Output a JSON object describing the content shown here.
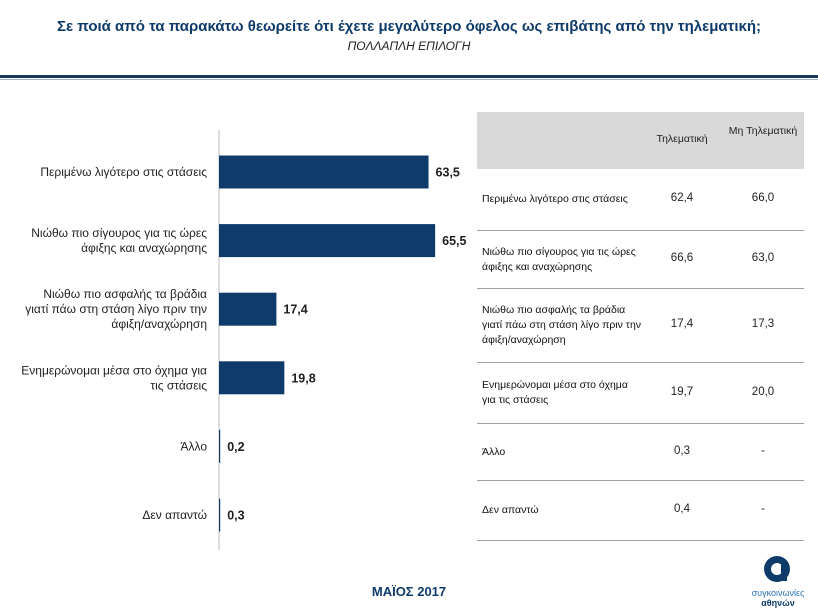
{
  "header": {
    "title": "Σε ποιά από τα παρακάτω θεωρείτε ότι έχετε μεγαλύτερο όφελος ως επιβάτης από την τηλεματική;",
    "subtitle": "ΠΟΛΛΑΠΛΗ ΕΠΙΛΟΓΗ"
  },
  "chart_data": {
    "type": "bar",
    "orientation": "horizontal",
    "title": "Σε ποιά από τα παρακάτω θεωρείτε ότι έχετε μεγαλύτερο όφελος ως επιβάτης από την τηλεματική;",
    "categories": [
      [
        "Περιμένω λιγότερο στις στάσεις"
      ],
      [
        "Νιώθω πιο σίγουρος για τις ώρες",
        "άφιξης και αναχώρησης"
      ],
      [
        "Νιώθω πιο ασφαλής τα βράδια",
        "γιατί πάω στη στάση λίγο πριν την",
        "άφιξη/αναχώρηση"
      ],
      [
        "Ενημερώνομαι μέσα στο όχημα για",
        "τις στάσεις"
      ],
      [
        "Άλλο"
      ],
      [
        "Δεν απαντώ"
      ]
    ],
    "values": [
      63.5,
      65.5,
      17.4,
      19.8,
      0.2,
      0.3
    ],
    "value_labels": [
      "63,5",
      "65,5",
      "17,4",
      "19,8",
      "0,2",
      "0,3"
    ],
    "xlim": [
      0,
      100
    ],
    "bar_color": "#0f3b6b",
    "grid": false
  },
  "table": {
    "headers": [
      "Τηλεματική",
      "Μη Τηλεματική"
    ],
    "rows": [
      {
        "label": "Περιμένω λιγότερο στις στάσεις",
        "v1": "62,4",
        "v2": "66,0"
      },
      {
        "label": "Νιώθω πιο σίγουρος για τις ώρες άφιξης και αναχώρησης",
        "v1": "66,6",
        "v2": "63,0"
      },
      {
        "label": "Νιώθω πιο ασφαλής τα βράδια γιατί πάω στη στάση λίγο πριν την άφιξη/αναχώρηση",
        "v1": "17,4",
        "v2": "17,3"
      },
      {
        "label": "Ενημερώνομαι μέσα στο όχημα για τις στάσεις",
        "v1": "19,7",
        "v2": "20,0"
      },
      {
        "label": "Άλλο",
        "v1": "0,3",
        "v2": "-"
      },
      {
        "label": "Δεν απαντώ",
        "v1": "0,4",
        "v2": "-"
      }
    ]
  },
  "footer": {
    "date": "ΜΑΪΟΣ 2017"
  },
  "logo": {
    "line1": "συγκοινωνίες",
    "line2": "αθηνών"
  },
  "colors": {
    "brand": "#0f3b6b",
    "header_bg": "#d9d9d9",
    "logo_accent": "#2c73b7"
  }
}
